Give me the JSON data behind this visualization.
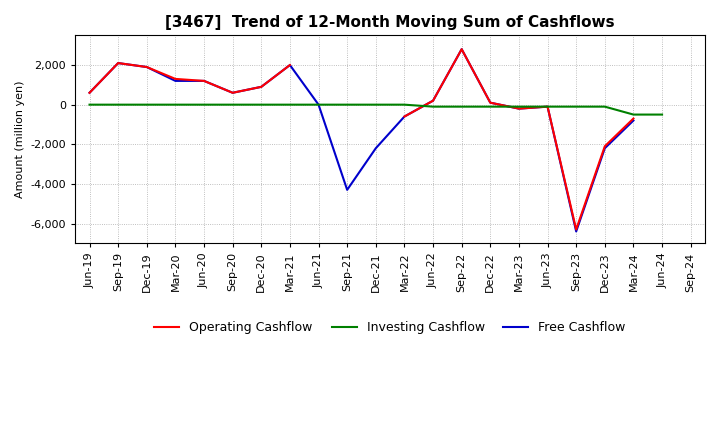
{
  "title": "[3467]  Trend of 12-Month Moving Sum of Cashflows",
  "ylabel": "Amount (million yen)",
  "x_labels": [
    "Jun-19",
    "Sep-19",
    "Dec-19",
    "Mar-20",
    "Jun-20",
    "Sep-20",
    "Dec-20",
    "Mar-21",
    "Jun-21",
    "Sep-21",
    "Dec-21",
    "Mar-22",
    "Jun-22",
    "Sep-22",
    "Dec-22",
    "Mar-23",
    "Jun-23",
    "Sep-23",
    "Dec-23",
    "Mar-24",
    "Jun-24",
    "Sep-24"
  ],
  "operating": [
    600,
    2100,
    1900,
    1300,
    1200,
    600,
    900,
    2000,
    null,
    null,
    null,
    -600,
    200,
    2800,
    100,
    -200,
    -100,
    -6300,
    -2100,
    -700,
    null,
    null
  ],
  "investing": [
    0,
    0,
    0,
    0,
    0,
    0,
    0,
    0,
    0,
    0,
    0,
    0,
    -100,
    -100,
    -100,
    -100,
    -100,
    -100,
    -100,
    -500,
    -500,
    null
  ],
  "free": [
    600,
    2100,
    1900,
    1200,
    1200,
    600,
    900,
    2000,
    0,
    -4300,
    -2200,
    -600,
    200,
    2800,
    100,
    -200,
    -100,
    -6400,
    -2200,
    -800,
    null,
    null
  ],
  "operating_color": "#ff0000",
  "investing_color": "#008000",
  "free_color": "#0000cc",
  "ylim": [
    -7000,
    3500
  ],
  "yticks": [
    -6000,
    -4000,
    -2000,
    0,
    2000
  ],
  "background_color": "#ffffff",
  "grid_color": "#888888",
  "title_fontsize": 11,
  "axis_fontsize": 8,
  "legend_fontsize": 9
}
